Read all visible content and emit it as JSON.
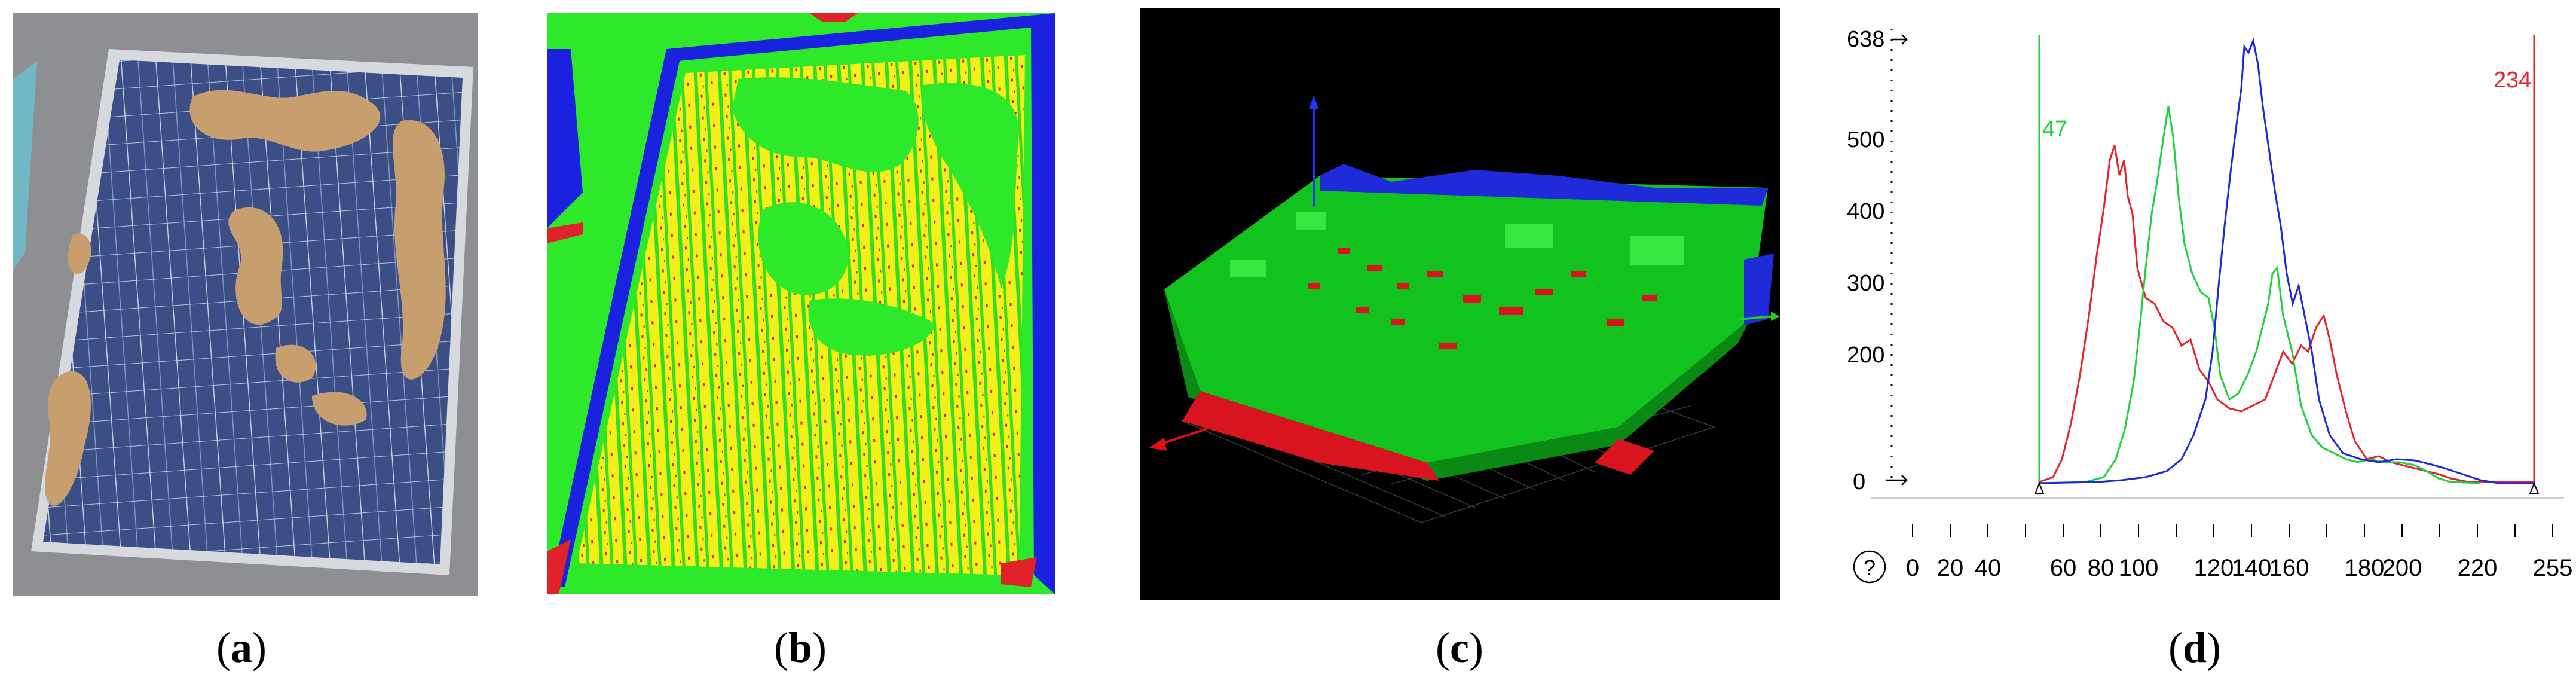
{
  "captions": {
    "a": "a",
    "b": "b",
    "c": "c",
    "d": "d"
  },
  "histogram": {
    "y_ticks": [
      "638",
      "500",
      "400",
      "300",
      "200",
      "0"
    ],
    "x_ticks": [
      "0",
      "20",
      "40",
      "60",
      "80",
      "100",
      "120",
      "140",
      "160",
      "180",
      "200",
      "220",
      "255"
    ],
    "lower_threshold": "47",
    "upper_threshold": "234",
    "help_symbol": "?",
    "colors": {
      "red": "#e8222a",
      "green": "#1fd23a",
      "blue": "#1a28e0"
    }
  }
}
